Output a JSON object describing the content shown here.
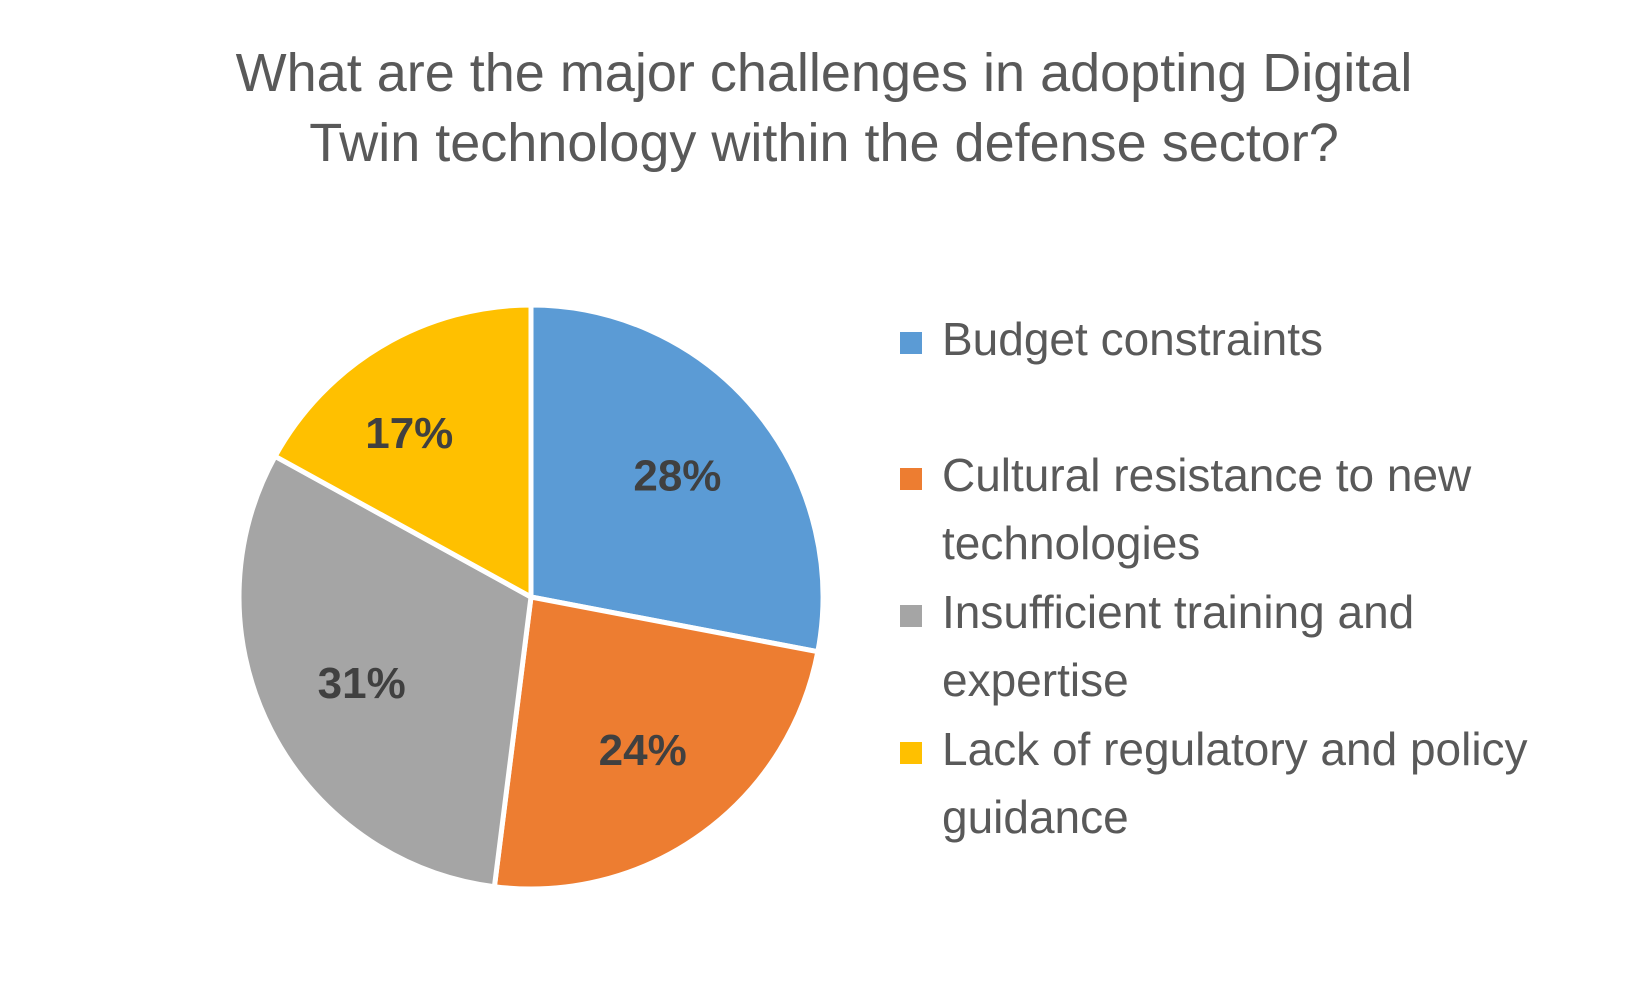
{
  "chart_data": {
    "type": "pie",
    "title": "What are the major challenges in adopting Digital Twin technology within the defense sector?",
    "title_lines": [
      "What are the major challenges in adopting Digital",
      "Twin technology within the defense sector?"
    ],
    "categories": [
      "Budget constraints",
      "Cultural resistance to new technologies",
      "Insufficient training and expertise",
      "Lack of regulatory and policy guidance"
    ],
    "legend_lines": [
      [
        "Budget constraints"
      ],
      [
        "Cultural resistance to new",
        "technologies"
      ],
      [
        "Insufficient training and",
        "expertise"
      ],
      [
        "Lack of regulatory and policy",
        "guidance"
      ]
    ],
    "values": [
      28,
      24,
      31,
      17
    ],
    "data_labels": [
      "28%",
      "24%",
      "31%",
      "17%"
    ],
    "colors": [
      "#5B9BD5",
      "#ED7D31",
      "#A5A5A5",
      "#FFC000"
    ],
    "legend_position": "right",
    "start_angle": "12 o'clock, clockwise"
  }
}
